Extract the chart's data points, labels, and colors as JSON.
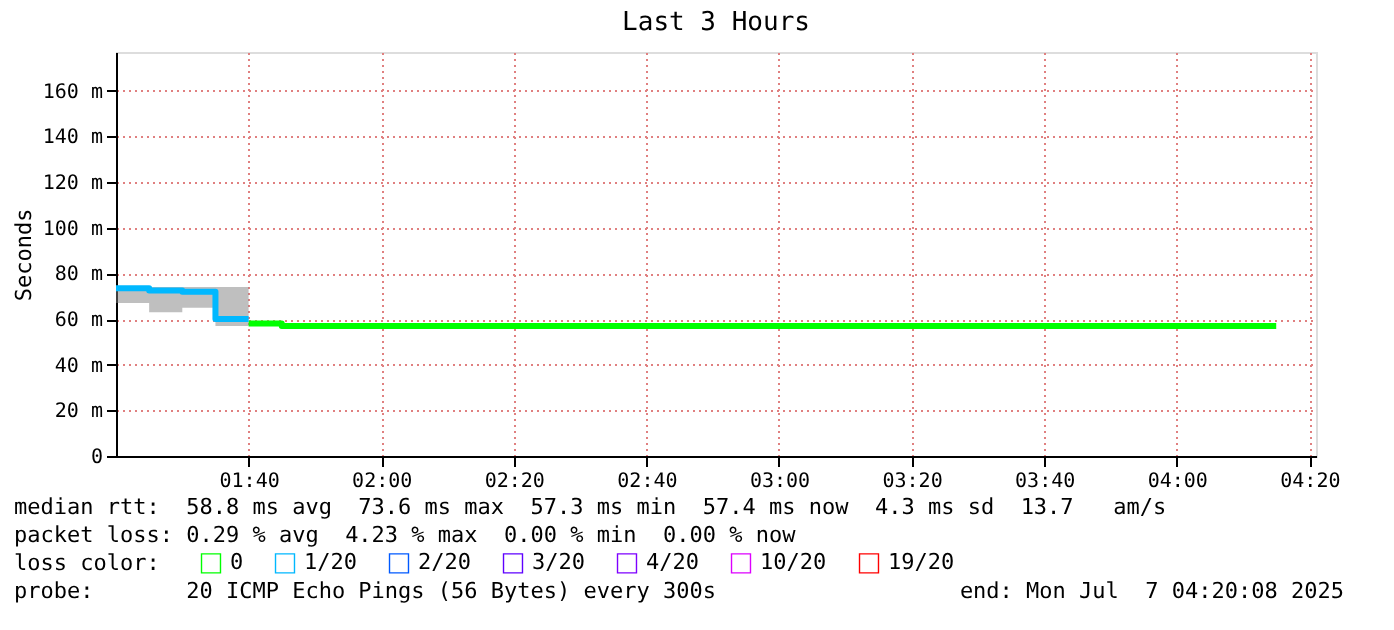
{
  "chart_data": {
    "type": "step",
    "title": "Last 3 Hours",
    "ylabel": "Seconds",
    "legend_title": "loss color:",
    "xlim": [
      "2025-07-07T01:20",
      "2025-07-07T04:21"
    ],
    "xticks": [
      {
        "value": "2025-07-07T01:40",
        "label": "01:40"
      },
      {
        "value": "2025-07-07T02:00",
        "label": "02:00"
      },
      {
        "value": "2025-07-07T02:20",
        "label": "02:20"
      },
      {
        "value": "2025-07-07T02:40",
        "label": "02:40"
      },
      {
        "value": "2025-07-07T03:00",
        "label": "03:00"
      },
      {
        "value": "2025-07-07T03:20",
        "label": "03:20"
      },
      {
        "value": "2025-07-07T03:40",
        "label": "03:40"
      },
      {
        "value": "2025-07-07T04:00",
        "label": "04:00"
      },
      {
        "value": "2025-07-07T04:20",
        "label": "04:20"
      }
    ],
    "ylim": [
      0,
      177
    ],
    "yticks": [
      0,
      {
        "value": 20,
        "label": "20 m"
      },
      {
        "value": 40,
        "label": "40 m"
      },
      {
        "value": 60,
        "label": "60 m"
      },
      {
        "value": 80,
        "label": "80 m"
      },
      {
        "value": 100,
        "label": "100 m"
      },
      {
        "value": 120,
        "label": "120 m"
      },
      {
        "value": 140,
        "label": "140 m"
      },
      {
        "value": 160,
        "label": "160 m"
      }
    ],
    "grid": true,
    "legend": "bottom",
    "marker": "none",
    "line_style": "solid",
    "series": [
      {
        "name": "0",
        "color": "#00ff00",
        "x": [
          "2025-07-07T01:40",
          "2025-07-07T01:45",
          "2025-07-07T04:15"
        ],
        "values": [
          58,
          57,
          57
        ]
      },
      {
        "name": "1/20",
        "color": "#00b8ff",
        "x": [
          "2025-07-07T01:20",
          "2025-07-07T01:25",
          "2025-07-07T01:30",
          "2025-07-07T01:35",
          "2025-07-07T01:40"
        ],
        "values": [
          73.5,
          72.5,
          72,
          60,
          60
        ],
        "lower": [
          67,
          63,
          65,
          57,
          57
        ],
        "upper": [
          74,
          74,
          74,
          74,
          74
        ]
      },
      {
        "name": "2/20",
        "color": "#0059ff"
      },
      {
        "name": "3/20",
        "color": "#5e00ff"
      },
      {
        "name": "4/20",
        "color": "#7e00ff"
      },
      {
        "name": "10/20",
        "color": "#dd00ff"
      },
      {
        "name": "19/20",
        "color": "#ff0000"
      }
    ],
    "annotations": [
      "median rtt:  58.8 ms avg  73.6 ms max  57.3 ms min  57.4 ms now  4.3 ms sd  13.7   am/s",
      "packet loss: 0.29 % avg  4.23 % max  0.00 % min  0.00 % now",
      "probe:       20 ICMP Echo Pings (56 Bytes) every 300s",
      "end: Mon Jul  7 04:20:08 2025"
    ]
  }
}
